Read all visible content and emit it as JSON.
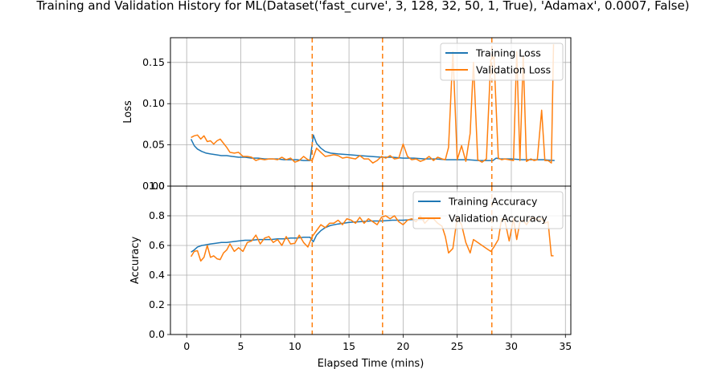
{
  "title": "Training and Validation History for ML(Dataset('fast_curve', 3, 128, 32, 50, 1, True), 'Adamax', 0.0007, False)",
  "colors": {
    "training": "#1f77b4",
    "validation": "#ff7f0e",
    "grid": "#b0b0b0"
  },
  "chart_data": [
    {
      "type": "line",
      "ylabel": "Loss",
      "xlabel": "",
      "xlim": [
        -1.5,
        35.5
      ],
      "ylim": [
        0.0,
        0.18
      ],
      "yticks": [
        "0.00",
        "0.05",
        "0.10",
        "0.15"
      ],
      "ytick_values": [
        0.0,
        0.05,
        0.1,
        0.15
      ],
      "xticks": [
        0,
        5,
        10,
        15,
        20,
        25,
        30,
        35
      ],
      "grid": true,
      "legend_position": "upper right",
      "vlines": [
        11.6,
        18.1,
        28.2
      ],
      "series": [
        {
          "name": "Training Loss",
          "x": [
            0.4,
            0.7,
            1.0,
            1.4,
            1.8,
            2.2,
            2.7,
            3.2,
            3.7,
            4.2,
            4.8,
            5.4,
            6.0,
            6.6,
            7.2,
            7.8,
            8.4,
            9.0,
            9.6,
            10.2,
            10.8,
            11.4,
            11.7,
            12.0,
            12.4,
            12.8,
            13.3,
            14.0,
            15.0,
            16.0,
            17.0,
            18.0,
            19.0,
            20.0,
            21.0,
            22.0,
            23.0,
            24.0,
            25.0,
            26.0,
            27.0,
            28.0,
            28.3,
            28.6,
            29.0,
            30.0,
            31.0,
            32.0,
            33.0,
            34.0
          ],
          "values": [
            0.057,
            0.049,
            0.045,
            0.042,
            0.04,
            0.039,
            0.038,
            0.037,
            0.037,
            0.036,
            0.035,
            0.035,
            0.034,
            0.034,
            0.033,
            0.033,
            0.033,
            0.032,
            0.032,
            0.032,
            0.031,
            0.031,
            0.062,
            0.052,
            0.046,
            0.042,
            0.04,
            0.039,
            0.038,
            0.037,
            0.036,
            0.035,
            0.035,
            0.034,
            0.034,
            0.033,
            0.033,
            0.032,
            0.032,
            0.032,
            0.031,
            0.031,
            0.031,
            0.034,
            0.033,
            0.033,
            0.032,
            0.032,
            0.032,
            0.031
          ]
        },
        {
          "name": "Validation Loss",
          "x": [
            0.4,
            0.7,
            1.0,
            1.3,
            1.6,
            1.9,
            2.2,
            2.5,
            2.8,
            3.1,
            3.4,
            3.7,
            4.0,
            4.4,
            4.8,
            5.2,
            5.6,
            6.0,
            6.4,
            6.8,
            7.2,
            7.6,
            8.0,
            8.4,
            8.8,
            9.2,
            9.6,
            10.0,
            10.4,
            10.8,
            11.2,
            11.6,
            12.0,
            12.4,
            12.8,
            13.2,
            13.6,
            14.0,
            14.4,
            14.8,
            15.2,
            15.6,
            16.0,
            16.4,
            16.8,
            17.2,
            17.6,
            18.0,
            18.4,
            18.8,
            19.2,
            19.6,
            20.0,
            20.4,
            20.8,
            21.2,
            21.6,
            22.0,
            22.4,
            22.8,
            23.2,
            23.6,
            23.9,
            24.2,
            24.6,
            25.0,
            25.4,
            25.8,
            26.2,
            26.5,
            26.9,
            27.3,
            27.7,
            28.1,
            28.4,
            28.8,
            29.1,
            29.4,
            29.8,
            30.2,
            30.5,
            30.8,
            31.1,
            31.4,
            31.8,
            32.1,
            32.4,
            32.8,
            33.1,
            33.4,
            33.7,
            33.9
          ],
          "values": [
            0.059,
            0.061,
            0.062,
            0.057,
            0.061,
            0.054,
            0.055,
            0.051,
            0.055,
            0.057,
            0.052,
            0.047,
            0.041,
            0.04,
            0.041,
            0.036,
            0.036,
            0.035,
            0.031,
            0.033,
            0.032,
            0.033,
            0.033,
            0.032,
            0.035,
            0.032,
            0.034,
            0.029,
            0.031,
            0.036,
            0.032,
            0.031,
            0.046,
            0.041,
            0.036,
            0.037,
            0.038,
            0.037,
            0.034,
            0.035,
            0.034,
            0.033,
            0.037,
            0.033,
            0.033,
            0.028,
            0.031,
            0.036,
            0.034,
            0.037,
            0.033,
            0.034,
            0.051,
            0.036,
            0.032,
            0.033,
            0.03,
            0.032,
            0.036,
            0.031,
            0.035,
            0.033,
            0.032,
            0.047,
            0.163,
            0.032,
            0.049,
            0.03,
            0.064,
            0.15,
            0.032,
            0.029,
            0.033,
            0.153,
            0.157,
            0.034,
            0.032,
            0.033,
            0.032,
            0.031,
            0.163,
            0.031,
            0.157,
            0.03,
            0.033,
            0.031,
            0.032,
            0.092,
            0.031,
            0.031,
            0.028,
            0.172
          ]
        }
      ]
    },
    {
      "type": "line",
      "ylabel": "Accuracy",
      "xlabel": "Elapsed Time (mins)",
      "xlim": [
        -1.5,
        35.5
      ],
      "ylim": [
        0.0,
        1.0
      ],
      "yticks": [
        "0.0",
        "0.2",
        "0.4",
        "0.6",
        "0.8",
        "1.0"
      ],
      "ytick_values": [
        0.0,
        0.2,
        0.4,
        0.6,
        0.8,
        1.0
      ],
      "xticks": [
        0,
        5,
        10,
        15,
        20,
        25,
        30,
        35
      ],
      "grid": true,
      "legend_position": "upper right",
      "vlines": [
        11.6,
        18.1,
        28.2
      ],
      "series": [
        {
          "name": "Training Accuracy",
          "x": [
            0.4,
            0.7,
            1.0,
            1.4,
            1.8,
            2.2,
            2.7,
            3.2,
            3.7,
            4.2,
            4.8,
            5.4,
            6.0,
            6.6,
            7.2,
            7.8,
            8.4,
            9.0,
            9.6,
            10.2,
            10.8,
            11.4,
            11.7,
            12.0,
            12.4,
            12.8,
            13.3,
            14.0,
            15.0,
            16.0,
            17.0,
            18.0,
            19.0,
            20.0,
            21.0,
            22.0
          ],
          "values": [
            0.555,
            0.57,
            0.59,
            0.6,
            0.605,
            0.61,
            0.615,
            0.62,
            0.62,
            0.625,
            0.63,
            0.635,
            0.635,
            0.64,
            0.64,
            0.64,
            0.645,
            0.645,
            0.65,
            0.65,
            0.655,
            0.655,
            0.625,
            0.67,
            0.7,
            0.72,
            0.735,
            0.745,
            0.755,
            0.76,
            0.765,
            0.765,
            0.77,
            0.77,
            0.775,
            0.775
          ]
        },
        {
          "name": "Validation Accuracy",
          "x": [
            0.4,
            0.7,
            1.0,
            1.3,
            1.6,
            1.9,
            2.2,
            2.5,
            2.8,
            3.1,
            3.4,
            3.7,
            4.0,
            4.4,
            4.8,
            5.2,
            5.6,
            6.0,
            6.4,
            6.8,
            7.2,
            7.6,
            8.0,
            8.4,
            8.8,
            9.2,
            9.6,
            10.0,
            10.4,
            10.8,
            11.2,
            11.6,
            12.0,
            12.4,
            12.8,
            13.2,
            13.6,
            14.0,
            14.4,
            14.8,
            15.2,
            15.6,
            16.0,
            16.4,
            16.8,
            17.2,
            17.6,
            18.0,
            18.4,
            18.8,
            19.2,
            19.6,
            20.0,
            20.4,
            20.8,
            21.2,
            21.6,
            22.0,
            22.4,
            22.8,
            23.2,
            23.6,
            23.9,
            24.2,
            24.6,
            25.0,
            25.4,
            25.8,
            26.2,
            26.5,
            26.9,
            27.3,
            27.7,
            28.1,
            28.4,
            28.8,
            29.1,
            29.4,
            29.8,
            30.2,
            30.5,
            30.8,
            31.1,
            31.4,
            31.8,
            32.1,
            32.4,
            32.8,
            33.1,
            33.4,
            33.7,
            33.9
          ],
          "values": [
            0.525,
            0.56,
            0.565,
            0.495,
            0.52,
            0.6,
            0.52,
            0.53,
            0.51,
            0.505,
            0.55,
            0.57,
            0.61,
            0.56,
            0.585,
            0.56,
            0.62,
            0.63,
            0.67,
            0.61,
            0.65,
            0.66,
            0.62,
            0.64,
            0.6,
            0.66,
            0.61,
            0.615,
            0.67,
            0.62,
            0.59,
            0.66,
            0.7,
            0.74,
            0.72,
            0.75,
            0.75,
            0.77,
            0.74,
            0.78,
            0.77,
            0.75,
            0.79,
            0.75,
            0.78,
            0.76,
            0.74,
            0.79,
            0.8,
            0.78,
            0.8,
            0.76,
            0.74,
            0.77,
            0.78,
            0.76,
            0.8,
            0.75,
            0.78,
            0.78,
            0.75,
            0.73,
            0.66,
            0.55,
            0.58,
            0.79,
            0.74,
            0.62,
            0.55,
            0.64,
            0.62,
            0.6,
            0.58,
            0.56,
            0.59,
            0.64,
            0.78,
            0.77,
            0.63,
            0.78,
            0.64,
            0.76,
            0.77,
            0.74,
            0.78,
            0.79,
            0.77,
            0.78,
            0.75,
            0.76,
            0.53,
            0.53
          ]
        }
      ]
    }
  ]
}
